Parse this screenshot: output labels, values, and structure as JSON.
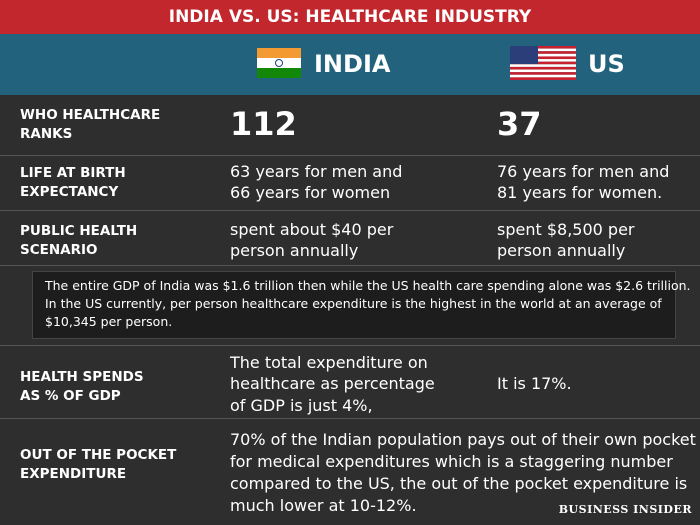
{
  "header": {
    "title": "INDIA VS. US: HEALTHCARE INDUSTRY",
    "columns": [
      "INDIA",
      "US"
    ]
  },
  "rows": [
    {
      "label": [
        "WHO HEALTHCARE",
        "RANKS"
      ],
      "india": [
        "112"
      ],
      "us": [
        "37"
      ]
    },
    {
      "label": [
        "LIFE AT BIRTH",
        "EXPECTANCY"
      ],
      "india": [
        "63 years for men and",
        "66 years for women"
      ],
      "us": [
        "76 years for men and",
        "81 years for women."
      ]
    },
    {
      "label": [
        "PUBLIC HEALTH",
        "SCENARIO"
      ],
      "india": [
        "spent about $40 per",
        "person annually"
      ],
      "us": [
        "spent $8,500 per",
        "person annually"
      ]
    },
    {
      "label": [
        "HEALTH SPENDS",
        "AS % OF GDP"
      ],
      "india": [
        "The total expenditure on",
        "healthcare as percentage",
        "of GDP is just 4%,"
      ],
      "us": [
        "It is 17%."
      ]
    }
  ],
  "note": [
    "The entire GDP of India was $1.6 trillion then while the US health care spending alone was $2.6 trillion.",
    "In the US currently, per person healthcare expenditure is the highest in the world at an average of",
    "$10,345 per person."
  ],
  "final_row": {
    "label": [
      "OUT OF THE POCKET",
      "EXPENDITURE"
    ],
    "text": [
      "70% of the Indian population pays out of their own pocket",
      "for medical expenditures which is a staggering number",
      "compared to the US, the out of the pocket expenditure is",
      "much lower at 10-12%."
    ]
  },
  "footer": {
    "brand": "BUSINESS INSIDER"
  }
}
